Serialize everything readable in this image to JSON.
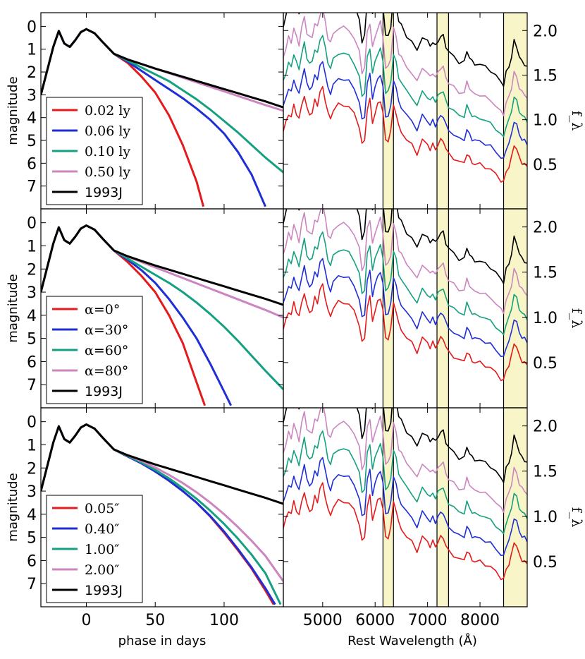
{
  "chart_data": [
    {
      "type": "line",
      "panel": "light-curves-top",
      "xlabel": "",
      "ylabel": "magnitude",
      "xlim": [
        -33,
        143
      ],
      "ylim": [
        8,
        -0.6
      ],
      "y_inverted": true,
      "xticks": [],
      "yticks": [
        "0",
        "1",
        "2",
        "3",
        "4",
        "5",
        "6",
        "7"
      ],
      "legend": "lower-left",
      "series": [
        {
          "name": "0.02 ly",
          "color": "#e41a1c",
          "x": [
            -33,
            -24,
            -20,
            -16,
            -12,
            -8,
            -4,
            0,
            6,
            12,
            20,
            30,
            40,
            50,
            60,
            70,
            80,
            85
          ],
          "y": [
            3,
            0.9,
            0.2,
            0.75,
            0.9,
            0.6,
            0.25,
            0.12,
            0.3,
            0.7,
            1.2,
            1.6,
            2.2,
            2.9,
            3.9,
            5.2,
            6.8,
            7.9
          ]
        },
        {
          "name": "0.06 ly",
          "color": "#1f2fd6",
          "x": [
            -33,
            -24,
            -20,
            -16,
            -12,
            -8,
            -4,
            0,
            6,
            12,
            20,
            30,
            40,
            50,
            60,
            70,
            80,
            90,
            100,
            110,
            120,
            130
          ],
          "y": [
            3,
            0.9,
            0.2,
            0.75,
            0.9,
            0.6,
            0.25,
            0.12,
            0.3,
            0.7,
            1.2,
            1.55,
            1.95,
            2.35,
            2.75,
            3.15,
            3.6,
            4.1,
            4.7,
            5.5,
            6.5,
            7.9
          ]
        },
        {
          "name": "0.10 ly",
          "color": "#15a080",
          "x": [
            -33,
            -24,
            -20,
            -16,
            -12,
            -8,
            -4,
            0,
            6,
            12,
            20,
            30,
            40,
            50,
            60,
            70,
            80,
            90,
            100,
            110,
            120,
            130,
            143
          ],
          "y": [
            3,
            0.9,
            0.2,
            0.75,
            0.9,
            0.6,
            0.25,
            0.12,
            0.3,
            0.7,
            1.2,
            1.5,
            1.8,
            2.1,
            2.4,
            2.8,
            3.2,
            3.65,
            4.15,
            4.65,
            5.2,
            5.75,
            6.4
          ]
        },
        {
          "name": "0.50 ly",
          "color": "#cc85c0",
          "x": [
            -33,
            -24,
            -20,
            -16,
            -12,
            -8,
            -4,
            0,
            6,
            12,
            20,
            30,
            40,
            50,
            60,
            70,
            80,
            90,
            100,
            110,
            120,
            130,
            143
          ],
          "y": [
            3,
            0.9,
            0.2,
            0.75,
            0.9,
            0.6,
            0.25,
            0.12,
            0.3,
            0.7,
            1.2,
            1.45,
            1.65,
            1.85,
            2.05,
            2.25,
            2.45,
            2.65,
            2.85,
            3.05,
            3.25,
            3.45,
            3.7
          ]
        },
        {
          "name": "1993J",
          "color": "#000000",
          "x": [
            -33,
            -24,
            -20,
            -16,
            -12,
            -8,
            -4,
            0,
            6,
            12,
            20,
            30,
            40,
            50,
            60,
            70,
            80,
            90,
            100,
            110,
            120,
            130,
            143
          ],
          "y": [
            3,
            0.9,
            0.2,
            0.75,
            0.9,
            0.6,
            0.25,
            0.12,
            0.3,
            0.7,
            1.2,
            1.45,
            1.65,
            1.85,
            2.03,
            2.21,
            2.39,
            2.57,
            2.75,
            2.93,
            3.11,
            3.29,
            3.55
          ]
        }
      ]
    },
    {
      "type": "line",
      "panel": "light-curves-middle",
      "xlabel": "",
      "ylabel": "magnitude",
      "xlim": [
        -33,
        143
      ],
      "ylim": [
        8,
        -0.6
      ],
      "y_inverted": true,
      "xticks": [],
      "yticks": [
        "0",
        "1",
        "2",
        "3",
        "4",
        "5",
        "6",
        "7"
      ],
      "legend": "lower-left",
      "series": [
        {
          "name": "α=0°",
          "color": "#e41a1c",
          "x": [
            -33,
            -24,
            -20,
            -16,
            -12,
            -8,
            -4,
            0,
            6,
            12,
            20,
            30,
            40,
            50,
            60,
            70,
            80,
            86
          ],
          "y": [
            3,
            0.9,
            0.2,
            0.75,
            0.9,
            0.6,
            0.25,
            0.12,
            0.3,
            0.7,
            1.2,
            1.7,
            2.3,
            3.0,
            4.0,
            5.2,
            6.9,
            7.9
          ]
        },
        {
          "name": "α=30°",
          "color": "#1f2fd6",
          "x": [
            -33,
            -24,
            -20,
            -16,
            -12,
            -8,
            -4,
            0,
            6,
            12,
            20,
            30,
            40,
            50,
            60,
            70,
            80,
            90,
            100,
            105
          ],
          "y": [
            3,
            0.9,
            0.2,
            0.75,
            0.9,
            0.6,
            0.25,
            0.12,
            0.3,
            0.7,
            1.2,
            1.6,
            2.05,
            2.6,
            3.3,
            4.1,
            5.0,
            6.1,
            7.3,
            7.9
          ]
        },
        {
          "name": "α=60°",
          "color": "#15a080",
          "x": [
            -33,
            -24,
            -20,
            -16,
            -12,
            -8,
            -4,
            0,
            6,
            12,
            20,
            30,
            40,
            50,
            60,
            70,
            80,
            90,
            100,
            110,
            120,
            130,
            143
          ],
          "y": [
            3,
            0.9,
            0.2,
            0.75,
            0.9,
            0.6,
            0.25,
            0.12,
            0.3,
            0.7,
            1.2,
            1.55,
            1.9,
            2.25,
            2.6,
            3.0,
            3.45,
            3.95,
            4.5,
            5.1,
            5.75,
            6.4,
            7.2
          ]
        },
        {
          "name": "α=80°",
          "color": "#cc85c0",
          "x": [
            -33,
            -24,
            -20,
            -16,
            -12,
            -8,
            -4,
            0,
            6,
            12,
            20,
            30,
            40,
            50,
            60,
            70,
            80,
            90,
            100,
            110,
            120,
            130,
            143
          ],
          "y": [
            3,
            0.9,
            0.2,
            0.75,
            0.9,
            0.6,
            0.25,
            0.12,
            0.3,
            0.7,
            1.2,
            1.47,
            1.7,
            1.93,
            2.16,
            2.39,
            2.62,
            2.85,
            3.08,
            3.31,
            3.54,
            3.77,
            4.1
          ]
        },
        {
          "name": "1993J",
          "color": "#000000",
          "x": [
            -33,
            -24,
            -20,
            -16,
            -12,
            -8,
            -4,
            0,
            6,
            12,
            20,
            30,
            40,
            50,
            60,
            70,
            80,
            90,
            100,
            110,
            120,
            130,
            143
          ],
          "y": [
            3,
            0.9,
            0.2,
            0.75,
            0.9,
            0.6,
            0.25,
            0.12,
            0.3,
            0.7,
            1.2,
            1.45,
            1.65,
            1.85,
            2.03,
            2.21,
            2.39,
            2.57,
            2.75,
            2.93,
            3.11,
            3.29,
            3.55
          ]
        }
      ]
    },
    {
      "type": "line",
      "panel": "light-curves-bottom",
      "xlabel": "phase in days",
      "ylabel": "magnitude",
      "xlim": [
        -33,
        143
      ],
      "ylim": [
        8,
        -0.6
      ],
      "y_inverted": true,
      "xticks": [
        "0",
        "50",
        "100"
      ],
      "yticks": [
        "0",
        "1",
        "2",
        "3",
        "4",
        "5",
        "6",
        "7"
      ],
      "legend": "lower-left",
      "series": [
        {
          "name": "0.05″",
          "color": "#e41a1c",
          "x": [
            -33,
            -24,
            -20,
            -16,
            -12,
            -8,
            -4,
            0,
            6,
            12,
            20,
            30,
            40,
            50,
            60,
            70,
            80,
            90,
            100,
            110,
            120,
            130,
            136
          ],
          "y": [
            3,
            0.9,
            0.2,
            0.75,
            0.9,
            0.6,
            0.25,
            0.12,
            0.3,
            0.7,
            1.2,
            1.5,
            1.8,
            2.15,
            2.55,
            3.0,
            3.5,
            4.1,
            4.8,
            5.55,
            6.35,
            7.3,
            7.9
          ]
        },
        {
          "name": "0.40″",
          "color": "#1f2fd6",
          "x": [
            -33,
            -24,
            -20,
            -16,
            -12,
            -8,
            -4,
            0,
            6,
            12,
            20,
            30,
            40,
            50,
            60,
            70,
            80,
            90,
            100,
            110,
            120,
            130,
            137
          ],
          "y": [
            3,
            0.9,
            0.2,
            0.75,
            0.9,
            0.6,
            0.25,
            0.12,
            0.3,
            0.7,
            1.2,
            1.5,
            1.8,
            2.15,
            2.55,
            3.0,
            3.5,
            4.08,
            4.75,
            5.5,
            6.3,
            7.2,
            7.9
          ]
        },
        {
          "name": "1.00″",
          "color": "#15a080",
          "x": [
            -33,
            -24,
            -20,
            -16,
            -12,
            -8,
            -4,
            0,
            6,
            12,
            20,
            30,
            40,
            50,
            60,
            70,
            80,
            90,
            100,
            110,
            120,
            130,
            141
          ],
          "y": [
            3,
            0.9,
            0.2,
            0.75,
            0.9,
            0.6,
            0.25,
            0.12,
            0.3,
            0.7,
            1.2,
            1.48,
            1.76,
            2.08,
            2.45,
            2.87,
            3.33,
            3.85,
            4.42,
            5.05,
            5.75,
            6.55,
            7.9
          ]
        },
        {
          "name": "2.00″",
          "color": "#cc85c0",
          "x": [
            -33,
            -24,
            -20,
            -16,
            -12,
            -8,
            -4,
            0,
            6,
            12,
            20,
            30,
            40,
            50,
            60,
            70,
            80,
            90,
            100,
            110,
            120,
            130,
            143
          ],
          "y": [
            3,
            0.9,
            0.2,
            0.75,
            0.9,
            0.6,
            0.25,
            0.12,
            0.3,
            0.7,
            1.2,
            1.45,
            1.7,
            1.98,
            2.3,
            2.65,
            3.05,
            3.5,
            4.0,
            4.55,
            5.15,
            5.8,
            6.9
          ]
        },
        {
          "name": "1993J",
          "color": "#000000",
          "x": [
            -33,
            -24,
            -20,
            -16,
            -12,
            -8,
            -4,
            0,
            6,
            12,
            20,
            30,
            40,
            50,
            60,
            70,
            80,
            90,
            100,
            110,
            120,
            130,
            143
          ],
          "y": [
            3,
            0.9,
            0.2,
            0.75,
            0.9,
            0.6,
            0.25,
            0.12,
            0.3,
            0.7,
            1.2,
            1.45,
            1.65,
            1.85,
            2.03,
            2.21,
            2.39,
            2.57,
            2.75,
            2.93,
            3.11,
            3.29,
            3.55
          ]
        }
      ]
    },
    {
      "type": "line",
      "panel": "spectra-top",
      "xlabel": "",
      "ylabel": "f_λ",
      "xlim": [
        4250,
        8900
      ],
      "ylim": [
        0,
        2.2
      ],
      "xticks": [],
      "yticks": [
        "0.5",
        "1.0",
        "1.5",
        "2.0"
      ],
      "highlight_bands": [
        [
          6150,
          6350
        ],
        [
          7180,
          7400
        ],
        [
          8450,
          8950
        ]
      ],
      "legend": "none",
      "offsets": [
        0.0,
        0.25,
        0.5,
        0.75,
        1.08
      ],
      "colors": [
        "#e41a1c",
        "#1f2fd6",
        "#15a080",
        "#cc85c0",
        "#000000"
      ]
    },
    {
      "type": "line",
      "panel": "spectra-middle",
      "xlabel": "",
      "ylabel": "f_λ",
      "xlim": [
        4250,
        8900
      ],
      "ylim": [
        0,
        2.2
      ],
      "xticks": [],
      "yticks": [
        "0.5",
        "1.0",
        "1.5",
        "2.0"
      ],
      "highlight_bands": [
        [
          6150,
          6350
        ],
        [
          7180,
          7400
        ],
        [
          8450,
          8950
        ]
      ],
      "legend": "none",
      "offsets": [
        0.0,
        0.25,
        0.5,
        0.75,
        1.08
      ],
      "colors": [
        "#e41a1c",
        "#1f2fd6",
        "#15a080",
        "#cc85c0",
        "#000000"
      ]
    },
    {
      "type": "line",
      "panel": "spectra-bottom",
      "xlabel": "Rest Wavelength (Å)",
      "ylabel": "f_λ",
      "xlim": [
        4250,
        8900
      ],
      "ylim": [
        0,
        2.2
      ],
      "xticks": [
        "5000",
        "6000",
        "7000",
        "8000"
      ],
      "yticks": [
        "0.5",
        "1.0",
        "1.5",
        "2.0"
      ],
      "highlight_bands": [
        [
          6150,
          6350
        ],
        [
          7180,
          7400
        ],
        [
          8450,
          8950
        ]
      ],
      "legend": "none",
      "offsets": [
        0.0,
        0.25,
        0.5,
        0.75,
        1.08
      ],
      "colors": [
        "#e41a1c",
        "#1f2fd6",
        "#15a080",
        "#cc85c0",
        "#000000"
      ]
    }
  ],
  "spectrum_template": {
    "wavelength": [
      4250,
      4300,
      4350,
      4400,
      4450,
      4500,
      4550,
      4600,
      4650,
      4700,
      4750,
      4800,
      4850,
      4900,
      4950,
      5000,
      5050,
      5100,
      5150,
      5200,
      5300,
      5400,
      5500,
      5600,
      5700,
      5750,
      5800,
      5850,
      5900,
      5950,
      6000,
      6050,
      6100,
      6150,
      6200,
      6250,
      6300,
      6350,
      6400,
      6450,
      6500,
      6600,
      6700,
      6800,
      6900,
      7000,
      7050,
      7100,
      7150,
      7200,
      7250,
      7300,
      7350,
      7400,
      7500,
      7600,
      7700,
      7750,
      7800,
      7850,
      7900,
      8000,
      8100,
      8200,
      8300,
      8400,
      8450,
      8500,
      8550,
      8600,
      8650,
      8700,
      8750,
      8800,
      8850,
      8900
    ],
    "flux": [
      0.65,
      0.75,
      0.85,
      0.8,
      0.95,
      0.85,
      0.78,
      0.95,
      1.05,
      0.9,
      0.85,
      0.85,
      1.0,
      0.95,
      1.08,
      1.15,
      1.0,
      0.85,
      0.8,
      0.88,
      0.95,
      0.95,
      0.92,
      0.85,
      0.7,
      0.5,
      0.55,
      0.9,
      1.0,
      0.75,
      0.85,
      0.95,
      1.0,
      0.85,
      0.55,
      0.55,
      0.65,
      0.95,
      0.85,
      0.7,
      0.65,
      0.55,
      0.5,
      0.4,
      0.55,
      0.5,
      0.45,
      0.5,
      0.45,
      0.5,
      0.55,
      0.55,
      0.45,
      0.4,
      0.35,
      0.3,
      0.3,
      0.4,
      0.35,
      0.3,
      0.28,
      0.28,
      0.25,
      0.22,
      0.17,
      0.1,
      0.08,
      0.2,
      0.25,
      0.35,
      0.5,
      0.45,
      0.35,
      0.3,
      0.28,
      0.25
    ]
  },
  "legends": {
    "top": [
      "0.02 ly",
      "0.06 ly",
      "0.10 ly",
      "0.50 ly",
      "1993J"
    ],
    "middle": [
      "α=0°",
      "α=30°",
      "α=60°",
      "α=80°",
      "1993J"
    ],
    "bottom": [
      "0.05″",
      "0.40″",
      "1.00″",
      "2.00″",
      "1993J"
    ]
  }
}
